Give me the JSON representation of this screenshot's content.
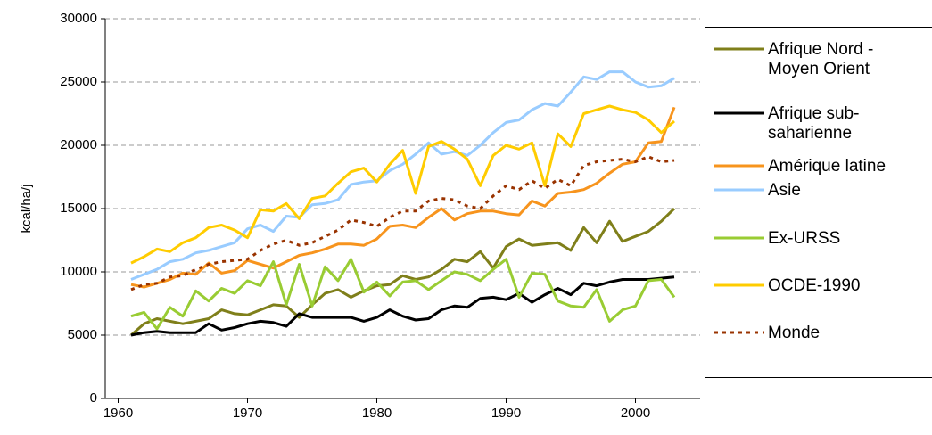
{
  "chart_data": {
    "type": "line",
    "y_label": "kcal/ha/j",
    "x": [
      1961,
      1962,
      1963,
      1964,
      1965,
      1966,
      1967,
      1968,
      1969,
      1970,
      1971,
      1972,
      1973,
      1974,
      1975,
      1976,
      1977,
      1978,
      1979,
      1980,
      1981,
      1982,
      1983,
      1984,
      1985,
      1986,
      1987,
      1988,
      1989,
      1990,
      1991,
      1992,
      1993,
      1994,
      1995,
      1996,
      1997,
      1998,
      1999,
      2000,
      2001,
      2002,
      2003
    ],
    "xlim": [
      1959,
      2005
    ],
    "xticks": [
      1960,
      1970,
      1980,
      1990,
      2000
    ],
    "ylim": [
      0,
      30000
    ],
    "yticks": [
      0,
      5000,
      10000,
      15000,
      20000,
      25000,
      30000
    ],
    "grid": true,
    "legend": "right",
    "series": [
      {
        "name": "Afrique Nord - Moyen Orient",
        "color": "#7f7f1a",
        "style": "solid",
        "values": [
          5000,
          5900,
          6300,
          6100,
          5900,
          6100,
          6300,
          7000,
          6700,
          6600,
          7000,
          7400,
          7300,
          6400,
          7400,
          8300,
          8600,
          8000,
          8500,
          8900,
          9000,
          9700,
          9400,
          9600,
          10200,
          11000,
          10800,
          11600,
          10300,
          12000,
          12600,
          12100,
          12200,
          12300,
          11700,
          13500,
          12300,
          14000,
          12400,
          12800,
          13200,
          14000,
          15000
        ]
      },
      {
        "name": "Afrique sub-saharienne",
        "color": "#000000",
        "style": "solid",
        "values": [
          5000,
          5200,
          5300,
          5200,
          5200,
          5200,
          5900,
          5400,
          5600,
          5900,
          6100,
          6000,
          5700,
          6700,
          6400,
          6400,
          6400,
          6400,
          6100,
          6400,
          7000,
          6500,
          6200,
          6300,
          7000,
          7300,
          7200,
          7900,
          8000,
          7800,
          8300,
          7600,
          8200,
          8700,
          8200,
          9100,
          8900,
          9200,
          9400,
          9400,
          9400,
          9500,
          9600
        ]
      },
      {
        "name": "Amérique latine",
        "color": "#f7941d",
        "style": "solid",
        "values": [
          9000,
          8800,
          9100,
          9400,
          9900,
          9800,
          10700,
          9900,
          10100,
          10900,
          10600,
          10300,
          10800,
          11300,
          11500,
          11800,
          12200,
          12200,
          12100,
          12600,
          13600,
          13700,
          13500,
          14300,
          15000,
          14100,
          14600,
          14800,
          14800,
          14600,
          14500,
          15600,
          15200,
          16200,
          16300,
          16500,
          17000,
          17800,
          18500,
          18700,
          20200,
          20300,
          23000
        ]
      },
      {
        "name": "Asie",
        "color": "#99ccff",
        "style": "solid",
        "values": [
          9400,
          9800,
          10200,
          10800,
          11000,
          11500,
          11700,
          12000,
          12300,
          13400,
          13700,
          13200,
          14400,
          14300,
          15300,
          15400,
          15700,
          16900,
          17100,
          17200,
          18000,
          18500,
          19300,
          20200,
          19300,
          19500,
          19200,
          20000,
          21000,
          21800,
          22000,
          22800,
          23300,
          23100,
          24200,
          25400,
          25200,
          25800,
          25800,
          25000,
          24600,
          24700,
          25300
        ]
      },
      {
        "name": "Ex-URSS",
        "color": "#99cc33",
        "style": "solid",
        "values": [
          6500,
          6800,
          5500,
          7200,
          6500,
          8500,
          7700,
          8700,
          8300,
          9300,
          8900,
          10800,
          7400,
          10600,
          7300,
          10400,
          9300,
          11000,
          8400,
          9200,
          8100,
          9200,
          9300,
          8600,
          9300,
          10000,
          9800,
          9300,
          10200,
          11000,
          8000,
          9900,
          9800,
          7700,
          7300,
          7200,
          8600,
          6100,
          7000,
          7300,
          9300,
          9400,
          8000
        ]
      },
      {
        "name": "OCDE-1990",
        "color": "#ffcc00",
        "style": "solid",
        "values": [
          10700,
          11200,
          11800,
          11600,
          12300,
          12700,
          13500,
          13700,
          13300,
          12700,
          14900,
          14800,
          15400,
          14200,
          15800,
          16000,
          17000,
          17900,
          18200,
          17100,
          18500,
          19600,
          16200,
          19900,
          20300,
          19700,
          18900,
          16800,
          19200,
          20000,
          19700,
          20200,
          16800,
          20900,
          19900,
          22500,
          22800,
          23100,
          22800,
          22600,
          22000,
          21000,
          21900
        ]
      },
      {
        "name": "Monde",
        "color": "#993300",
        "style": "dashed",
        "values": [
          8600,
          9000,
          9100,
          9600,
          9700,
          10200,
          10600,
          10800,
          10900,
          11000,
          11700,
          12200,
          12500,
          12100,
          12300,
          12800,
          13300,
          14100,
          13900,
          13600,
          14300,
          14800,
          14800,
          15600,
          15800,
          15700,
          15200,
          15000,
          16000,
          16800,
          16500,
          17200,
          16600,
          17300,
          16800,
          18400,
          18700,
          18800,
          18900,
          18700,
          19100,
          18700,
          18800
        ]
      }
    ]
  }
}
